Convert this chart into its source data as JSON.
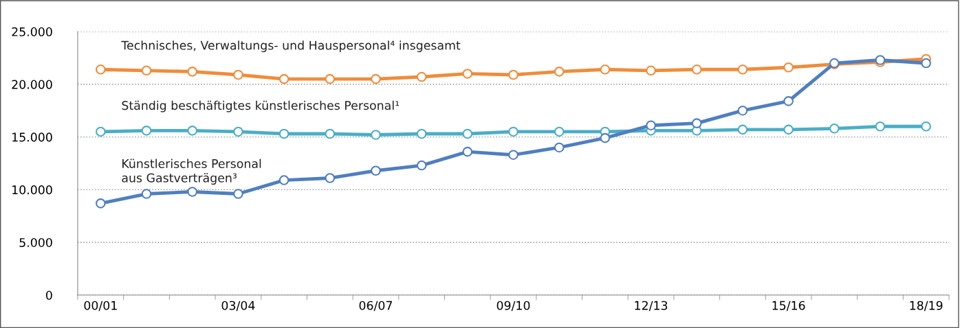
{
  "chart_data": {
    "type": "line",
    "categories": [
      "00/01",
      null,
      null,
      "03/04",
      null,
      null,
      "06/07",
      null,
      null,
      "09/10",
      null,
      null,
      "12/13",
      null,
      null,
      "15/16",
      null,
      null,
      "18/19"
    ],
    "series": [
      {
        "name": "Technisches, Verwaltungs- und Hauspersonal⁴ insgesamt",
        "color": "#f08c3a",
        "values": [
          21400,
          21300,
          21200,
          20900,
          20500,
          20500,
          20500,
          20700,
          21000,
          20900,
          21200,
          21400,
          21300,
          21400,
          21400,
          21600,
          21900,
          22100,
          22400
        ]
      },
      {
        "name": "Ständig beschäftigtes künstlerisches Personal¹",
        "color": "#4aaec6",
        "values": [
          15500,
          15600,
          15600,
          15500,
          15300,
          15300,
          15200,
          15300,
          15300,
          15500,
          15500,
          15500,
          15600,
          15600,
          15700,
          15700,
          15800,
          16000,
          16000
        ]
      },
      {
        "name": "Künstlerisches Personal\naus Gastverträgen³",
        "color": "#4f7fc0",
        "values": [
          8700,
          9600,
          9800,
          9600,
          10900,
          11100,
          11800,
          12300,
          13600,
          13300,
          14000,
          14900,
          16100,
          16300,
          17500,
          18400,
          22000,
          22300,
          22000
        ]
      }
    ],
    "ylim": [
      0,
      25000
    ],
    "yticks": [
      {
        "value": 0,
        "label": "0"
      },
      {
        "value": 5000,
        "label": "5.000"
      },
      {
        "value": 10000,
        "label": "10.000"
      },
      {
        "value": 15000,
        "label": "15.000"
      },
      {
        "value": 20000,
        "label": "20.000"
      },
      {
        "value": 25000,
        "label": "25.000"
      }
    ],
    "grid": "y",
    "marker": "circle",
    "line_style": "solid"
  }
}
